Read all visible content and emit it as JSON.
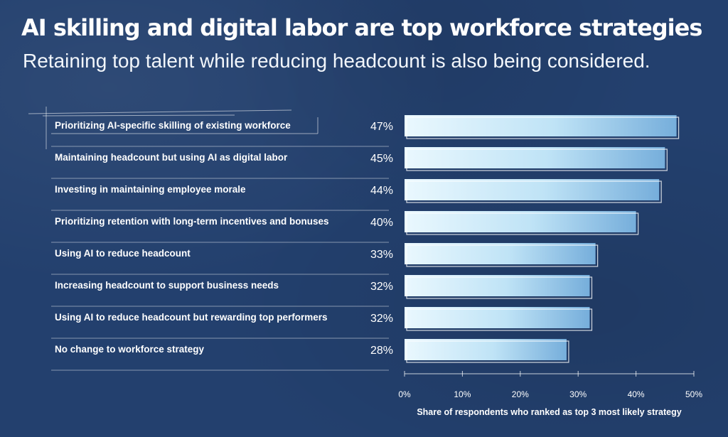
{
  "header": {
    "title": "AI skilling and digital labor are top workforce strategies",
    "subtitle": "Retaining top talent while reducing headcount is also being considered."
  },
  "colors": {
    "background": "#23406e",
    "bar_light": "#e6f7fd",
    "bar_dark": "#7cb4dc",
    "text": "#ffffff"
  },
  "chart_data": {
    "type": "bar",
    "orientation": "horizontal",
    "categories": [
      "Prioritizing AI-specific skilling of existing workforce",
      "Maintaining headcount but using AI as digital labor",
      "Investing in maintaining employee morale",
      "Prioritizing retention with long-term incentives and bonuses",
      "Using AI to reduce headcount",
      "Increasing headcount to support business needs",
      "Using AI to reduce headcount but rewarding top performers",
      "No change to workforce strategy"
    ],
    "values": [
      47,
      45,
      44,
      40,
      33,
      32,
      32,
      28
    ],
    "value_labels": [
      "47%",
      "45%",
      "44%",
      "40%",
      "33%",
      "32%",
      "32%",
      "28%"
    ],
    "xlim": [
      0,
      50
    ],
    "ticks": [
      0,
      10,
      20,
      30,
      40,
      50
    ],
    "tick_labels": [
      "0%",
      "10%",
      "20%",
      "30%",
      "40%",
      "50%"
    ],
    "xlabel": "Share of respondents who ranked as top 3 most likely strategy",
    "ylabel": "",
    "grid": false,
    "legend": "none"
  }
}
